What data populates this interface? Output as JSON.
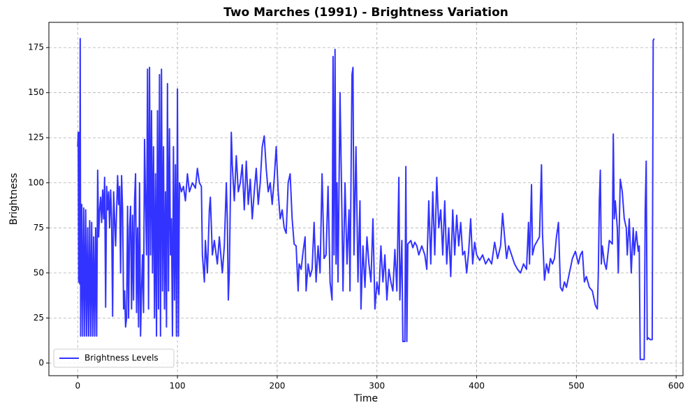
{
  "chart_data": {
    "type": "line",
    "title": "Two Marches (1991) - Brightness Variation",
    "x_label": "Time",
    "y_label": "Brightness",
    "x": [
      0,
      0.5,
      1,
      1.5,
      2,
      2.5,
      3,
      4,
      5,
      6,
      7,
      8,
      9,
      10,
      11,
      12,
      13,
      14,
      15,
      16,
      17,
      18,
      19,
      20,
      21,
      22,
      23,
      24,
      25,
      26,
      27,
      28,
      29,
      30,
      31,
      32,
      33,
      34,
      35,
      36,
      38,
      40,
      41,
      42,
      43,
      44,
      45,
      46,
      47,
      48,
      49,
      50,
      51,
      52,
      53,
      54,
      55,
      56,
      57,
      58,
      59,
      60,
      61,
      62,
      63,
      64,
      65,
      66,
      67,
      68,
      69,
      70,
      71,
      72,
      73,
      74,
      75,
      76,
      77,
      78,
      79,
      80,
      81,
      82,
      83,
      84,
      85,
      86,
      87,
      88,
      89,
      90,
      91,
      92,
      93,
      94,
      95,
      96,
      97,
      98,
      99,
      100,
      101,
      102,
      104,
      106,
      108,
      110,
      112,
      115,
      118,
      120,
      122,
      124,
      125,
      127,
      128,
      130,
      132,
      133,
      135,
      137,
      140,
      142,
      145,
      147,
      149,
      150,
      151,
      152,
      154,
      155,
      157,
      159,
      161,
      163,
      165,
      167,
      169,
      171,
      173,
      175,
      177,
      179,
      181,
      183,
      185,
      187,
      189,
      191,
      193,
      195,
      197,
      199,
      201,
      203,
      205,
      207,
      209,
      211,
      213,
      215,
      217,
      219,
      221,
      222,
      224,
      226,
      228,
      229,
      231,
      233,
      235,
      237,
      239,
      241,
      243,
      245,
      247,
      249,
      251,
      253,
      255,
      256,
      257,
      258,
      259,
      260,
      261,
      263,
      265,
      266,
      268,
      270,
      272,
      273,
      275,
      276,
      277,
      279,
      281,
      283,
      284,
      286,
      288,
      290,
      292,
      294,
      296,
      298,
      300,
      302,
      304,
      306,
      308,
      310,
      312,
      314,
      316,
      318,
      320,
      322,
      323,
      325,
      326,
      328,
      329,
      330,
      331,
      334,
      336,
      338,
      340,
      342,
      345,
      348,
      350,
      352,
      354,
      356,
      358,
      360,
      362,
      364,
      366,
      368,
      370,
      372,
      374,
      376,
      378,
      380,
      382,
      384,
      386,
      388,
      390,
      392,
      394,
      396,
      398,
      400,
      403,
      406,
      409,
      412,
      415,
      418,
      421,
      424,
      426,
      428,
      430,
      432,
      435,
      438,
      441,
      444,
      447,
      450,
      452,
      453,
      455,
      456,
      458,
      461,
      463,
      465,
      466,
      468,
      470,
      472,
      474,
      476,
      478,
      480,
      482,
      484,
      486,
      488,
      490,
      493,
      496,
      499,
      502,
      504,
      506,
      508,
      510,
      513,
      516,
      519,
      521,
      522,
      523,
      524,
      525,
      526,
      528,
      530,
      533,
      536,
      537,
      538,
      539,
      541,
      542,
      544,
      546,
      548,
      550,
      551,
      553,
      555,
      556,
      557,
      558,
      560,
      562,
      563,
      564,
      566,
      568,
      569,
      570,
      571,
      572,
      574,
      576,
      577,
      578
    ],
    "series": [
      {
        "name": "Brightness Levels",
        "color": "#3333ff",
        "values": [
          120,
          128,
          45,
          128,
          44,
          180,
          15,
          88,
          15,
          86,
          15,
          85,
          15,
          75,
          15,
          79,
          15,
          78,
          15,
          70,
          15,
          75,
          15,
          107,
          70,
          85,
          92,
          78,
          96,
          80,
          103,
          31,
          98,
          85,
          95,
          75,
          96,
          80,
          26,
          95,
          65,
          104,
          88,
          98,
          50,
          104,
          85,
          30,
          40,
          20,
          25,
          87,
          25,
          75,
          87,
          30,
          82,
          35,
          90,
          105,
          28,
          75,
          20,
          100,
          15,
          40,
          60,
          28,
          124,
          90,
          60,
          163,
          30,
          164,
          60,
          140,
          50,
          120,
          25,
          105,
          15,
          140,
          30,
          160,
          15,
          163,
          40,
          120,
          30,
          95,
          20,
          155,
          40,
          130,
          60,
          80,
          15,
          120,
          35,
          110,
          15,
          152,
          15,
          100,
          95,
          98,
          90,
          105,
          95,
          100,
          97,
          108,
          100,
          98,
          60,
          45,
          68,
          50,
          85,
          92,
          60,
          68,
          55,
          70,
          50,
          65,
          100,
          80,
          35,
          50,
          128,
          110,
          90,
          115,
          95,
          100,
          110,
          85,
          112,
          88,
          102,
          80,
          95,
          108,
          88,
          100,
          120,
          126,
          108,
          95,
          100,
          88,
          102,
          120,
          95,
          80,
          85,
          75,
          72,
          100,
          105,
          80,
          66,
          65,
          40,
          55,
          52,
          62,
          70,
          40,
          55,
          48,
          52,
          78,
          45,
          65,
          50,
          105,
          58,
          60,
          98,
          45,
          35,
          170,
          60,
          174,
          55,
          100,
          45,
          150,
          80,
          40,
          100,
          55,
          85,
          40,
          160,
          164,
          60,
          120,
          45,
          90,
          30,
          65,
          42,
          70,
          55,
          45,
          80,
          30,
          45,
          38,
          65,
          45,
          60,
          35,
          52,
          45,
          40,
          63,
          40,
          103,
          35,
          68,
          12,
          12,
          109,
          12,
          66,
          68,
          64,
          67,
          65,
          60,
          65,
          60,
          52,
          90,
          55,
          95,
          60,
          103,
          75,
          85,
          60,
          90,
          55,
          75,
          48,
          85,
          60,
          82,
          65,
          78,
          60,
          62,
          50,
          62,
          80,
          55,
          67,
          60,
          57,
          60,
          55,
          58,
          55,
          67,
          58,
          65,
          83,
          70,
          58,
          65,
          60,
          55,
          52,
          50,
          55,
          52,
          78,
          55,
          99,
          60,
          65,
          68,
          70,
          110,
          72,
          46,
          55,
          50,
          58,
          55,
          58,
          70,
          78,
          42,
          40,
          45,
          42,
          50,
          58,
          62,
          55,
          60,
          62,
          45,
          48,
          42,
          40,
          32,
          30,
          50,
          90,
          107,
          55,
          65,
          56,
          52,
          68,
          66,
          127,
          80,
          90,
          75,
          50,
          102,
          95,
          80,
          75,
          60,
          80,
          50,
          63,
          75,
          60,
          73,
          62,
          65,
          2,
          2,
          2,
          85,
          112,
          13,
          14,
          13,
          13,
          179,
          180
        ]
      }
    ],
    "xlim": [
      -28.9,
      606.9
    ],
    "ylim": [
      -7,
      189
    ],
    "xticks": [
      0,
      100,
      200,
      300,
      400,
      500,
      600
    ],
    "yticks": [
      0,
      25,
      50,
      75,
      100,
      125,
      150,
      175
    ],
    "grid": true,
    "legend": "lower left"
  }
}
